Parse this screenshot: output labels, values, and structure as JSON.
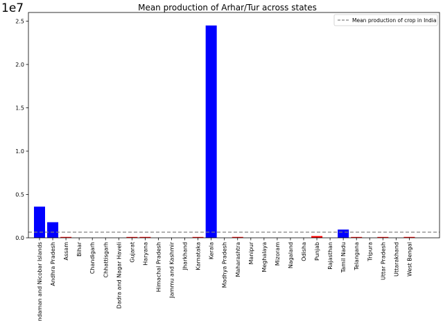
{
  "chart_data": {
    "type": "bar",
    "title": "Mean production of Arhar/Tur across states",
    "y_offset_label": "1e7",
    "xlabel": "",
    "ylabel": "",
    "ylim": [
      0,
      2.6
    ],
    "y_unit_multiplier": 10000000,
    "yticks": [
      "0.0",
      "0.5",
      "1.0",
      "1.5",
      "2.0",
      "2.5"
    ],
    "grid": false,
    "legend_position": "top-right",
    "categories": [
      "Andaman and Nicobar Islands",
      "Andhra Pradesh",
      "Assam",
      "Bihar",
      "Chandigarh",
      "Chhattisgarh",
      "Dadra and Nagar Haveli",
      "Gujarat",
      "Haryana",
      "Himachal Pradesh",
      "Jammu and Kashmir",
      "Jharkhand",
      "Karnataka",
      "Kerala",
      "Madhya Pradesh",
      "Maharashtra",
      "Manipur",
      "Meghalaya",
      "Mizoram",
      "Nagaland",
      "Odisha",
      "Punjab",
      "Rajasthan",
      "Tamil Nadu",
      "Telangana",
      "Tripura",
      "Uttar Pradesh",
      "Uttarakhand",
      "West Bengal"
    ],
    "values": [
      0.36,
      0.18,
      0.01,
      0.0,
      0.0,
      0.0,
      0.0,
      0.005,
      0.01,
      0.0,
      0.0,
      0.0,
      0.005,
      2.45,
      0.0,
      0.01,
      0.0,
      0.0,
      0.0,
      0.0,
      0.0,
      0.02,
      0.0,
      0.095,
      0.005,
      0.0,
      0.008,
      0.0,
      0.01
    ],
    "bar_colors": [
      "#0000ff",
      "#0000ff",
      "#ff0000",
      "#ff0000",
      "#ff0000",
      "#ff0000",
      "#ff0000",
      "#ff0000",
      "#ff0000",
      "#ff0000",
      "#ff0000",
      "#ff0000",
      "#ff0000",
      "#0000ff",
      "#ff0000",
      "#ff0000",
      "#ff0000",
      "#ff0000",
      "#ff0000",
      "#ff0000",
      "#ff0000",
      "#ff0000",
      "#ff0000",
      "#0000ff",
      "#ff0000",
      "#ff0000",
      "#ff0000",
      "#ff0000",
      "#ff0000"
    ],
    "mean_line": {
      "value": 0.065,
      "label": "Mean production of crop in India",
      "color": "#808080",
      "style": "dashed"
    }
  }
}
